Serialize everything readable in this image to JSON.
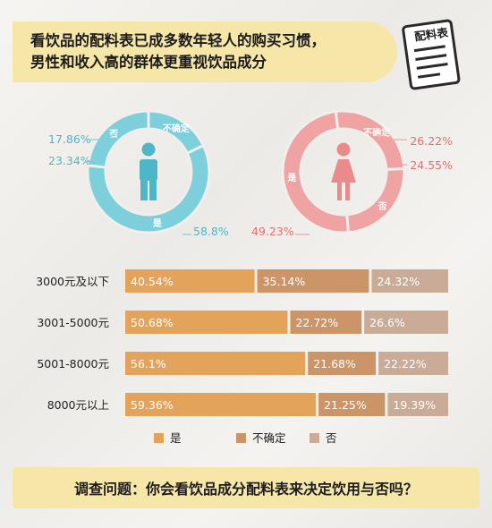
{
  "header": {
    "title_line1": "看饮品的配料表已成多数年轻人的购买习惯，",
    "title_line2": "男性和收入高的群体更重视饮品成分",
    "badge": "配料表"
  },
  "footer": {
    "question": "调查问题：你会看饮品成分配料表来决定饮用与否吗？"
  },
  "colors": {
    "male_ring": "#7ecfdc",
    "male_icon": "#4fb6c8",
    "male_text": "#4fb6c8",
    "female_ring": "#f0a3a3",
    "female_icon": "#e98b8b",
    "female_text": "#e56e6e",
    "yes": "#e3a35a",
    "unsure": "#cb9567",
    "no": "#c9ab97",
    "footer_bg": "#f6e7a9"
  },
  "chart_data": [
    {
      "type": "pie",
      "group": "male",
      "icon": "male-figure-icon",
      "slices": [
        {
          "label": "是",
          "value": 58.8,
          "display": "58.8%"
        },
        {
          "label": "否",
          "value": 23.34,
          "display": "23.34%"
        },
        {
          "label": "不确定",
          "value": 17.86,
          "display": "17.86%"
        }
      ]
    },
    {
      "type": "pie",
      "group": "female",
      "icon": "female-figure-icon",
      "slices": [
        {
          "label": "是",
          "value": 49.23,
          "display": "49.23%"
        },
        {
          "label": "不确定",
          "value": 26.22,
          "display": "26.22%"
        },
        {
          "label": "否",
          "value": 24.55,
          "display": "24.55%"
        }
      ]
    },
    {
      "type": "bar",
      "stacked": true,
      "orientation": "horizontal",
      "categories": [
        "3000元及以下",
        "3001-5000元",
        "5001-8000元",
        "8000元以上"
      ],
      "series": [
        {
          "name": "是",
          "values": [
            40.54,
            50.68,
            56.1,
            59.36
          ],
          "labels": [
            "40.54%",
            "50.68%",
            "56.1%",
            "59.36%"
          ]
        },
        {
          "name": "不确定",
          "values": [
            35.14,
            22.72,
            21.68,
            21.25
          ],
          "labels": [
            "35.14%",
            "22.72%",
            "21.68%",
            "21.25%"
          ]
        },
        {
          "name": "否",
          "values": [
            24.32,
            26.6,
            22.22,
            19.39
          ],
          "labels": [
            "24.32%",
            "26.6%",
            "22.22%",
            "19.39%"
          ]
        }
      ],
      "legend": "bottom"
    }
  ]
}
